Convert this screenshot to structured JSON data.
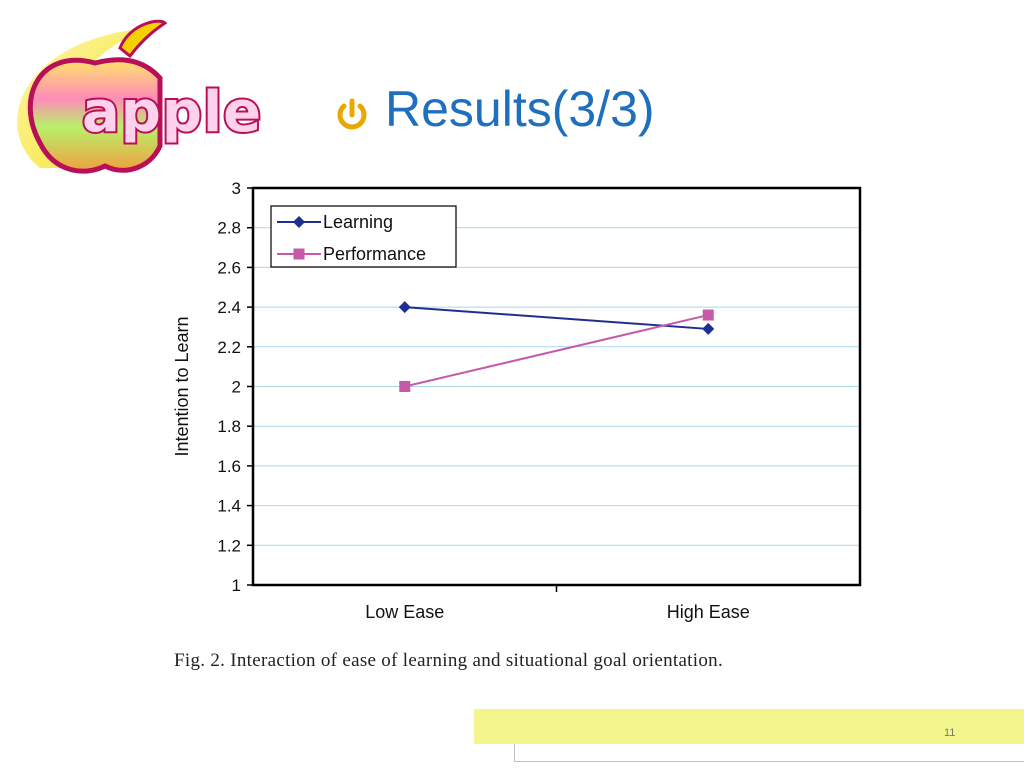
{
  "slide": {
    "logo_text": "apple",
    "title": "Results(3/3)",
    "caption": "Fig. 2.  Interaction of ease of learning and situational goal orientation.",
    "page_number": "11"
  },
  "colors": {
    "title": "#1f6fbf",
    "learning": "#1f2f8f",
    "performance": "#c65aa8",
    "footer": "#f2f58c",
    "gridline": "#a8d8e8"
  },
  "chart_data": {
    "type": "line",
    "title": "",
    "xlabel": "",
    "ylabel": "Intention to Learn",
    "categories": [
      "Low Ease",
      "High Ease"
    ],
    "ylim": [
      1,
      3
    ],
    "yticks": [
      "1",
      "1.2",
      "1.4",
      "1.6",
      "1.8",
      "2",
      "2.2",
      "2.4",
      "2.6",
      "2.8",
      "3"
    ],
    "grid": true,
    "legend_position": "top-left",
    "series": [
      {
        "name": "Learning",
        "values": [
          2.4,
          2.29
        ],
        "marker": "diamond",
        "color": "#1f2f8f"
      },
      {
        "name": "Performance",
        "values": [
          2.0,
          2.36
        ],
        "marker": "square",
        "color": "#c65aa8"
      }
    ]
  }
}
